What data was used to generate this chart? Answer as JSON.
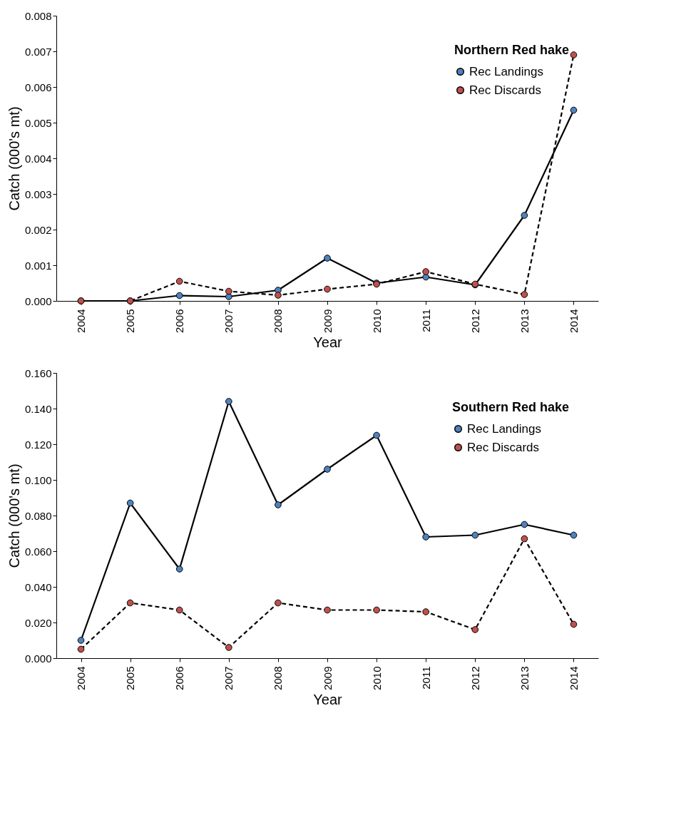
{
  "chart_data": [
    {
      "type": "line",
      "legend_title": "Northern Red hake",
      "xlabel": "Year",
      "ylabel": "Catch (000's mt)",
      "categories": [
        "2004",
        "2005",
        "2006",
        "2007",
        "2008",
        "2009",
        "2010",
        "2011",
        "2012",
        "2013",
        "2014"
      ],
      "series": [
        {
          "name": "Rec Landings",
          "color": "#4f81bd",
          "line_style": "solid",
          "values": [
            0,
            0,
            0.00015,
            0.00012,
            0.0003,
            0.0012,
            0.0005,
            0.00067,
            0.00045,
            0.0024,
            0.00535
          ]
        },
        {
          "name": "Rec Discards",
          "color": "#c0504d",
          "line_style": "dashed",
          "values": [
            0,
            0,
            0.00055,
            0.00027,
            0.00016,
            0.00033,
            0.00047,
            0.00082,
            0.00047,
            0.00018,
            0.0069
          ]
        }
      ],
      "ylim": [
        0,
        0.008
      ],
      "yticks": [
        {
          "value": 0,
          "label": "0.000"
        },
        {
          "value": 0.001,
          "label": "0.001"
        },
        {
          "value": 0.002,
          "label": "0.002"
        },
        {
          "value": 0.003,
          "label": "0.003"
        },
        {
          "value": 0.004,
          "label": "0.004"
        },
        {
          "value": 0.005,
          "label": "0.005"
        },
        {
          "value": 0.006,
          "label": "0.006"
        },
        {
          "value": 0.007,
          "label": "0.007"
        },
        {
          "value": 0.008,
          "label": "0.008"
        }
      ],
      "marker": "circle",
      "grid": false,
      "legend": "top right"
    },
    {
      "type": "line",
      "legend_title": "Southern Red hake",
      "xlabel": "Year",
      "ylabel": "Catch (000's mt)",
      "categories": [
        "2004",
        "2005",
        "2006",
        "2007",
        "2008",
        "2009",
        "2010",
        "2011",
        "2012",
        "2013",
        "2014"
      ],
      "series": [
        {
          "name": "Rec Landings",
          "color": "#4f81bd",
          "line_style": "solid",
          "values": [
            0.01,
            0.087,
            0.05,
            0.144,
            0.086,
            0.106,
            0.125,
            0.068,
            0.069,
            0.075,
            0.069
          ]
        },
        {
          "name": "Rec Discards",
          "color": "#c0504d",
          "line_style": "dashed",
          "values": [
            0.005,
            0.031,
            0.027,
            0.006,
            0.031,
            0.027,
            0.027,
            0.026,
            0.016,
            0.067,
            0.019
          ]
        }
      ],
      "ylim": [
        0,
        0.16
      ],
      "yticks": [
        {
          "value": 0,
          "label": "0.000"
        },
        {
          "value": 0.02,
          "label": "0.020"
        },
        {
          "value": 0.04,
          "label": "0.040"
        },
        {
          "value": 0.06,
          "label": "0.060"
        },
        {
          "value": 0.08,
          "label": "0.080"
        },
        {
          "value": 0.1,
          "label": "0.100"
        },
        {
          "value": 0.12,
          "label": "0.120"
        },
        {
          "value": 0.14,
          "label": "0.140"
        },
        {
          "value": 0.16,
          "label": "0.160"
        }
      ],
      "marker": "circle",
      "grid": false,
      "legend": "top right"
    }
  ]
}
